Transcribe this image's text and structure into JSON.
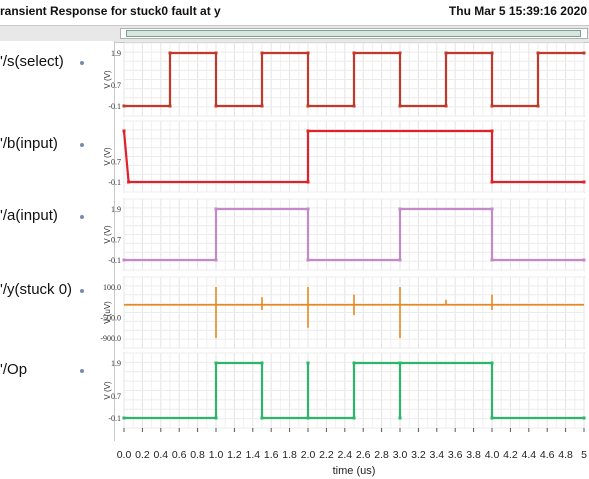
{
  "header": {
    "title": "ransient Response for stuck0 fault at y",
    "datetime": "Thu Mar 5 15:39:16 2020"
  },
  "signals": [
    {
      "name": "'/s(select)",
      "color": "#c0392b"
    },
    {
      "name": "'/b(input)",
      "color": "#e0202a"
    },
    {
      "name": "'/a(input)",
      "color": "#c48ac8"
    },
    {
      "name": "'/y(stuck 0)",
      "color": "#e8871e"
    },
    {
      "name": "'/Op",
      "color": "#2db56b"
    }
  ],
  "chart_data": {
    "type": "line",
    "xlabel": "time (us)",
    "xlim": [
      0,
      5
    ],
    "xticks": [
      "0.0",
      "0.2",
      "0.4",
      "0.6",
      "0.8",
      "1.0",
      "1.2",
      "1.4",
      "1.6",
      "1.8",
      "2.0",
      "2.2",
      "2.4",
      "2.6",
      "2.8",
      "3.0",
      "3.2",
      "3.4",
      "3.6",
      "3.8",
      "4.0",
      "4.2",
      "4.4",
      "4.6",
      "4.8",
      "5"
    ],
    "panels": [
      {
        "name": "'/s(select)",
        "ylabel": "V (V)",
        "ylim": [
          -0.1,
          1.9
        ],
        "yticks": [
          "1.9",
          "0.7",
          "-0.1"
        ],
        "color": "#c0392b",
        "points": [
          [
            0,
            -0.1
          ],
          [
            0.5,
            -0.1
          ],
          [
            0.5,
            1.9
          ],
          [
            1.0,
            1.9
          ],
          [
            1.0,
            -0.1
          ],
          [
            1.5,
            -0.1
          ],
          [
            1.5,
            1.9
          ],
          [
            2.0,
            1.9
          ],
          [
            2.0,
            -0.1
          ],
          [
            2.5,
            -0.1
          ],
          [
            2.5,
            1.9
          ],
          [
            3.0,
            1.9
          ],
          [
            3.0,
            -0.1
          ],
          [
            3.5,
            -0.1
          ],
          [
            3.5,
            1.9
          ],
          [
            4.0,
            1.9
          ],
          [
            4.0,
            -0.1
          ],
          [
            4.5,
            -0.1
          ],
          [
            4.5,
            1.9
          ],
          [
            5.0,
            1.9
          ]
        ]
      },
      {
        "name": "'/b(input)",
        "ylabel": "V (V)",
        "ylim": [
          -0.1,
          1.9
        ],
        "yticks": [
          "",
          "0.7",
          "-0.1"
        ],
        "color": "#e0202a",
        "points": [
          [
            0,
            1.9
          ],
          [
            0.05,
            -0.1
          ],
          [
            2.0,
            -0.1
          ],
          [
            2.0,
            1.9
          ],
          [
            4.0,
            1.9
          ],
          [
            4.0,
            -0.1
          ],
          [
            5.0,
            -0.1
          ]
        ]
      },
      {
        "name": "'/a(input)",
        "ylabel": "V (V)",
        "ylim": [
          -0.1,
          1.9
        ],
        "yticks": [
          "1.9",
          "0.7",
          "-0.1"
        ],
        "color": "#c48ac8",
        "points": [
          [
            0,
            -0.1
          ],
          [
            1.0,
            -0.1
          ],
          [
            1.0,
            1.9
          ],
          [
            2.0,
            1.9
          ],
          [
            2.0,
            -0.1
          ],
          [
            3.0,
            -0.1
          ],
          [
            3.0,
            1.9
          ],
          [
            4.0,
            1.9
          ],
          [
            4.0,
            -0.1
          ],
          [
            5.0,
            -0.1
          ]
        ]
      },
      {
        "name": "'/y(stuck 0)",
        "ylabel": "V (uV)",
        "ylim": [
          -900.0,
          100.0
        ],
        "yticks": [
          "100.0",
          "-500.0",
          "-900.0"
        ],
        "color": "#e8871e",
        "baseline": -250,
        "spikes": [
          [
            1.0,
            100,
            -900
          ],
          [
            1.5,
            -100,
            -350
          ],
          [
            2.0,
            100,
            -700
          ],
          [
            2.5,
            -50,
            -450
          ],
          [
            3.0,
            100,
            -900
          ],
          [
            3.5,
            -150,
            -250
          ],
          [
            4.0,
            -50,
            -350
          ]
        ]
      },
      {
        "name": "'/Op",
        "ylabel": "V (V)",
        "ylim": [
          -0.1,
          1.9
        ],
        "yticks": [
          "1.9",
          "0.7",
          "-0.1"
        ],
        "color": "#2db56b",
        "points": [
          [
            0,
            -0.1
          ],
          [
            1.0,
            -0.1
          ],
          [
            1.0,
            1.9
          ],
          [
            1.5,
            1.9
          ],
          [
            1.5,
            -0.1
          ],
          [
            2.0,
            -0.1
          ],
          [
            2.0,
            1.9
          ],
          [
            2.0,
            -0.1
          ],
          [
            2.5,
            -0.1
          ],
          [
            2.5,
            1.9
          ],
          [
            3.0,
            1.9
          ],
          [
            3.0,
            -0.1
          ],
          [
            3.0,
            1.9
          ],
          [
            4.0,
            1.9
          ],
          [
            4.0,
            -0.1
          ],
          [
            5.0,
            -0.1
          ]
        ]
      }
    ]
  }
}
